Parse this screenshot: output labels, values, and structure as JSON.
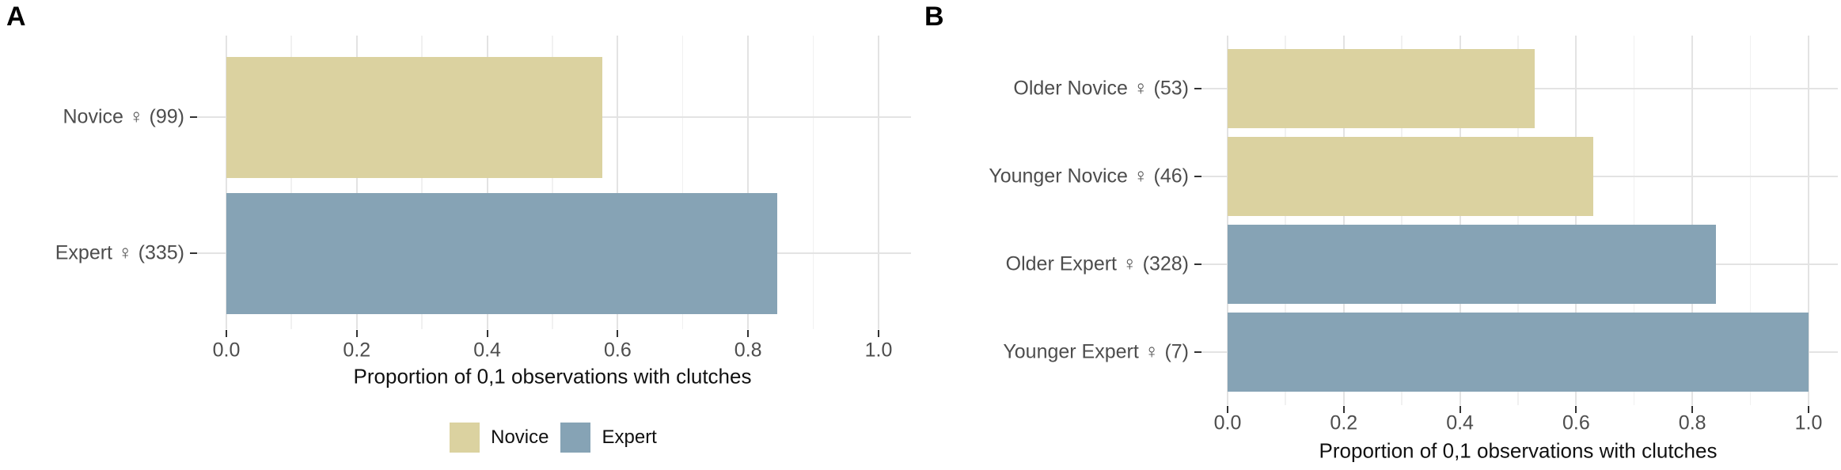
{
  "figure": {
    "background": "#ffffff"
  },
  "legend": {
    "position": "bottom-of-panel-A",
    "items": [
      {
        "label": "Novice",
        "color": "#DBD2A0"
      },
      {
        "label": "Expert",
        "color": "#86A3B5"
      }
    ]
  },
  "colors": {
    "novice": "#DBD2A0",
    "expert": "#86A3B5",
    "grid_major": "#E3E3E3",
    "grid_minor": "#F1F1F1",
    "axis_tick": "#333333",
    "tick_label_text": "#4D4D4D",
    "category_label_text": "#4D4D4D",
    "axis_title_text": "#111111"
  },
  "chart_data": [
    {
      "type": "bar",
      "orientation": "horizontal",
      "panel_label": "A",
      "categories": [
        "Novice ♀ (99)",
        "Expert ♀ (335)"
      ],
      "values": [
        0.576,
        0.845
      ],
      "bar_groups": [
        "Novice",
        "Expert"
      ],
      "bar_colors": [
        "#DBD2A0",
        "#86A3B5"
      ],
      "counts": [
        99,
        335
      ],
      "xlabel": "Proportion of 0,1 observations with clutches",
      "xticks": [
        0.0,
        0.2,
        0.4,
        0.6,
        0.8,
        1.0
      ],
      "xtick_labels": [
        "0.0",
        "0.2",
        "0.4",
        "0.6",
        "0.8",
        "1.0"
      ],
      "xlim": [
        0,
        1.05
      ],
      "grid": true,
      "legend_position": "bottom"
    },
    {
      "type": "bar",
      "orientation": "horizontal",
      "panel_label": "B",
      "categories": [
        "Older Novice ♀ (53)",
        "Younger Novice ♀ (46)",
        "Older Expert ♀ (328)",
        "Younger Expert ♀ (7)"
      ],
      "values": [
        0.528,
        0.63,
        0.841,
        1.0
      ],
      "bar_groups": [
        "Novice",
        "Novice",
        "Expert",
        "Expert"
      ],
      "bar_colors": [
        "#DBD2A0",
        "#DBD2A0",
        "#86A3B5",
        "#86A3B5"
      ],
      "counts": [
        53,
        46,
        328,
        7
      ],
      "xlabel": "Proportion of 0,1 observations with clutches",
      "xticks": [
        0.0,
        0.2,
        0.4,
        0.6,
        0.8,
        1.0
      ],
      "xtick_labels": [
        "0.0",
        "0.2",
        "0.4",
        "0.6",
        "0.8",
        "1.0"
      ],
      "xlim": [
        0,
        1.05
      ],
      "grid": true,
      "legend_position": "none"
    }
  ]
}
